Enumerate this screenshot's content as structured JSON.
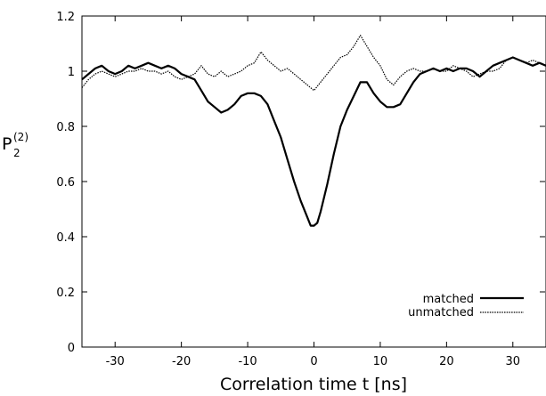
{
  "chart_data": {
    "type": "line",
    "xlabel": "Correlation time t [ns]",
    "ylabel": {
      "base": "P",
      "sub": "2",
      "sup": "(2)"
    },
    "xlim": [
      -35,
      35
    ],
    "ylim": [
      0,
      1.2
    ],
    "xticks": [
      -30,
      -20,
      -10,
      0,
      10,
      20,
      30
    ],
    "xtick_labels": [
      "-30",
      "-20",
      "-10",
      "0",
      "10",
      "20",
      "30"
    ],
    "yticks": [
      0,
      0.2,
      0.4,
      0.6,
      0.8,
      1,
      1.2
    ],
    "ytick_labels": [
      "0",
      "0.2",
      "0.4",
      "0.6",
      "0.8",
      "1",
      "1.2"
    ],
    "grid": false,
    "legend_position": "bottom-right",
    "series": [
      {
        "name": "matched",
        "style": "solid",
        "x": [
          -35,
          -34,
          -33,
          -32,
          -31,
          -30,
          -29,
          -28,
          -27,
          -26,
          -25,
          -24,
          -23,
          -22,
          -21,
          -20,
          -19,
          -18,
          -17,
          -16,
          -15,
          -14,
          -13,
          -12,
          -11,
          -10,
          -9,
          -8,
          -7,
          -6,
          -5,
          -4,
          -3,
          -2,
          -1,
          -0.5,
          0,
          0.5,
          1,
          2,
          3,
          4,
          5,
          6,
          7,
          8,
          9,
          10,
          11,
          12,
          13,
          14,
          15,
          16,
          17,
          18,
          19,
          20,
          21,
          22,
          23,
          24,
          25,
          26,
          27,
          28,
          29,
          30,
          31,
          32,
          33,
          34,
          35
        ],
        "y": [
          0.97,
          0.99,
          1.01,
          1.02,
          1.0,
          0.99,
          1.0,
          1.02,
          1.01,
          1.02,
          1.03,
          1.02,
          1.01,
          1.02,
          1.01,
          0.99,
          0.98,
          0.97,
          0.93,
          0.89,
          0.87,
          0.85,
          0.86,
          0.88,
          0.91,
          0.92,
          0.92,
          0.91,
          0.88,
          0.82,
          0.76,
          0.68,
          0.6,
          0.53,
          0.47,
          0.44,
          0.44,
          0.45,
          0.49,
          0.59,
          0.7,
          0.8,
          0.86,
          0.91,
          0.96,
          0.96,
          0.92,
          0.89,
          0.87,
          0.87,
          0.88,
          0.92,
          0.96,
          0.99,
          1.0,
          1.01,
          1.0,
          1.01,
          1.0,
          1.01,
          1.01,
          1.0,
          0.98,
          1.0,
          1.02,
          1.03,
          1.04,
          1.05,
          1.04,
          1.03,
          1.02,
          1.03,
          1.02
        ]
      },
      {
        "name": "unmatched",
        "style": "dotted",
        "x": [
          -35,
          -34,
          -33,
          -32,
          -31,
          -30,
          -29,
          -28,
          -27,
          -26,
          -25,
          -24,
          -23,
          -22,
          -21,
          -20,
          -19,
          -18,
          -17,
          -16,
          -15,
          -14,
          -13,
          -12,
          -11,
          -10,
          -9,
          -8,
          -7,
          -6,
          -5,
          -4,
          -3,
          -2,
          -1,
          0,
          1,
          2,
          3,
          4,
          5,
          6,
          7,
          8,
          9,
          10,
          11,
          12,
          13,
          14,
          15,
          16,
          17,
          18,
          19,
          20,
          21,
          22,
          23,
          24,
          25,
          26,
          27,
          28,
          29,
          30,
          31,
          32,
          33,
          34,
          35
        ],
        "y": [
          0.94,
          0.97,
          0.99,
          1.0,
          0.99,
          0.98,
          0.99,
          1.0,
          1.0,
          1.01,
          1.0,
          1.0,
          0.99,
          1.0,
          0.98,
          0.97,
          0.98,
          0.99,
          1.02,
          0.99,
          0.98,
          1.0,
          0.98,
          0.99,
          1.0,
          1.02,
          1.03,
          1.07,
          1.04,
          1.02,
          1.0,
          1.01,
          0.99,
          0.97,
          0.95,
          0.93,
          0.96,
          0.99,
          1.02,
          1.05,
          1.06,
          1.09,
          1.13,
          1.09,
          1.05,
          1.02,
          0.97,
          0.95,
          0.98,
          1.0,
          1.01,
          1.0,
          1.0,
          1.01,
          1.0,
          1.0,
          1.02,
          1.01,
          1.0,
          0.98,
          0.99,
          1.0,
          1.0,
          1.01,
          1.04,
          1.05,
          1.04,
          1.03,
          1.04,
          1.03,
          1.02
        ]
      }
    ]
  }
}
